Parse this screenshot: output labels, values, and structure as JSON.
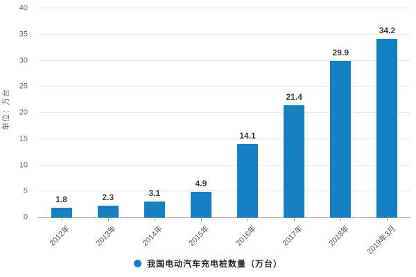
{
  "chart_data": {
    "type": "bar",
    "title": "",
    "categories": [
      "2012年",
      "2013年",
      "2014年",
      "2015年",
      "2016年",
      "2017年",
      "2018年",
      "2019年3月"
    ],
    "values": [
      1.8,
      2.3,
      3.1,
      4.9,
      14.1,
      21.4,
      29.9,
      34.2
    ],
    "value_labels": [
      "1.8",
      "2.3",
      "3.1",
      "4.9",
      "14.1",
      "21.4",
      "29.9",
      "34.2"
    ],
    "xlabel": "",
    "ylabel": "单位：万台",
    "ylim": [
      0,
      40
    ],
    "yticks": [
      0,
      5,
      10,
      15,
      20,
      25,
      30,
      35,
      40
    ],
    "grid": true,
    "legend_entries": [
      "我国电动汽车充电桩数量（万台）"
    ],
    "legend_position": "bottom",
    "bar_color": "#1581c5",
    "x_label_rotation_deg": 45
  },
  "legend": {
    "label": "我国电动汽车充电桩数量（万台）"
  },
  "axes": {
    "y_unit_label": "单位：万台"
  },
  "colors": {
    "bar": "#1581c5",
    "gridline": "#e9e9e9",
    "axis_line": "#9a9a9a",
    "tick_text": "#666666",
    "value_text": "#3d3d3d",
    "legend_text": "#2b2b2b",
    "background": "#ffffff"
  }
}
